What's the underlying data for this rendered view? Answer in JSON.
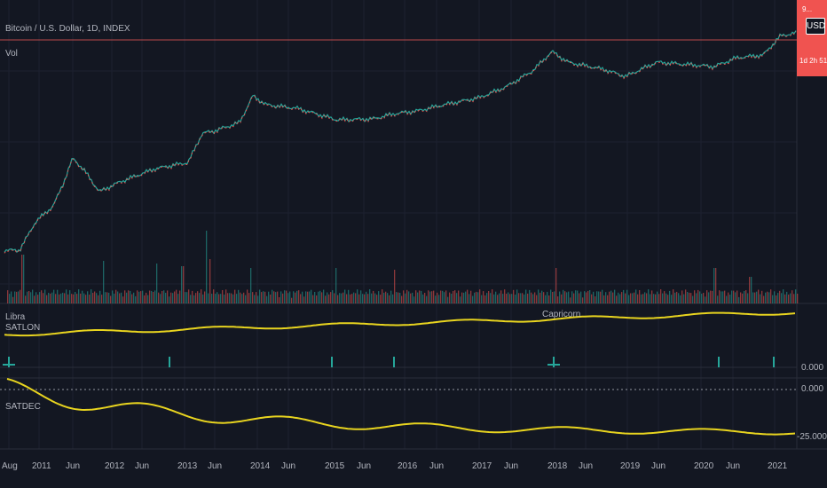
{
  "header": {
    "symbol_title": "Bitcoin / U.S. Dollar, 1D, INDEX",
    "volume_label": "Vol",
    "currency_button": "USD"
  },
  "price_badge": {
    "line1": "9...",
    "line2": "1d 2h 51"
  },
  "panes": {
    "sat_on": {
      "label_top": "Libra",
      "label": "SATLON",
      "zodiac_marker": "Capricorn",
      "axis_value": "0.000"
    },
    "sat_dec": {
      "label": "SATDEC",
      "axis_top": "0.000",
      "axis_bottom": "-25.000"
    }
  },
  "x_axis": {
    "ticks": [
      "Aug",
      "2011",
      "Jun",
      "2012",
      "Jun",
      "2013",
      "Jun",
      "2014",
      "Jun",
      "2015",
      "Jun",
      "2016",
      "Jun",
      "2017",
      "Jun",
      "2018",
      "Jun",
      "2019",
      "Jun",
      "2020",
      "Jun",
      "2021"
    ]
  },
  "colors": {
    "background": "#131722",
    "up": "#26a69a",
    "down": "#ef5350",
    "indicator": "#e8d41f",
    "price_line": "#f05350"
  }
}
